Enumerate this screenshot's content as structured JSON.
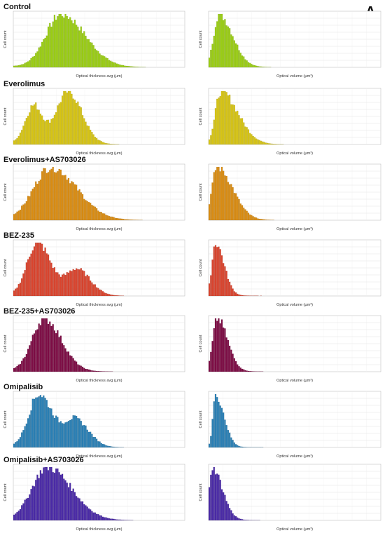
{
  "figure": {
    "panel_letter": "A",
    "axis_label_thickness": "Optical thickness avg (µm)",
    "axis_label_volume": "Optical volume (µm³)",
    "y_label": "Cell count"
  },
  "chart_data": [
    {
      "type": "bar",
      "group": "Control",
      "title": "Control",
      "color": "#9acd14",
      "measure": "thickness",
      "xlabel": "Optical thickness avg (µm)",
      "ylabel": "Cell count",
      "peaks": [
        {
          "center": 0.28,
          "height": 1.0,
          "width_left": 0.09,
          "width_right": 0.14
        }
      ],
      "tail": 0.02
    },
    {
      "type": "bar",
      "group": "Control",
      "title": "",
      "color": "#9acd14",
      "measure": "volume",
      "xlabel": "Optical volume (µm³)",
      "ylabel": "Cell count",
      "peaks": [
        {
          "center": 0.06,
          "height": 1.0,
          "width_left": 0.03,
          "width_right": 0.08
        }
      ],
      "tail": 0.01
    },
    {
      "type": "bar",
      "group": "Everolimus",
      "title": "Everolimus",
      "color": "#d6c414",
      "measure": "thickness",
      "xlabel": "Optical thickness avg (µm)",
      "ylabel": "Cell count",
      "peaks": [
        {
          "center": 0.12,
          "height": 0.72,
          "width_left": 0.05,
          "width_right": 0.05
        },
        {
          "center": 0.32,
          "height": 1.0,
          "width_left": 0.07,
          "width_right": 0.08
        }
      ],
      "tail": 0.02
    },
    {
      "type": "bar",
      "group": "Everolimus",
      "title": "",
      "color": "#d6c414",
      "measure": "volume",
      "xlabel": "Optical volume (µm³)",
      "ylabel": "Cell count",
      "peaks": [
        {
          "center": 0.07,
          "height": 1.0,
          "width_left": 0.03,
          "width_right": 0.1
        }
      ],
      "tail": 0.01
    },
    {
      "type": "bar",
      "group": "Everolimus+AS703026",
      "title": "Everolimus+AS703026",
      "color": "#d98c12",
      "measure": "thickness",
      "xlabel": "Optical thickness avg (µm)",
      "ylabel": "Cell count",
      "peaks": [
        {
          "center": 0.22,
          "height": 1.0,
          "width_left": 0.1,
          "width_right": 0.15
        }
      ],
      "tail": 0.02
    },
    {
      "type": "bar",
      "group": "Everolimus+AS703026",
      "title": "",
      "color": "#d98c12",
      "measure": "volume",
      "xlabel": "Optical volume (µm³)",
      "ylabel": "Cell count",
      "peaks": [
        {
          "center": 0.05,
          "height": 1.0,
          "width_left": 0.03,
          "width_right": 0.09
        }
      ],
      "tail": 0.01
    },
    {
      "type": "bar",
      "group": "BEZ-235",
      "title": "BEZ-235",
      "color": "#d9442e",
      "measure": "thickness",
      "xlabel": "Optical thickness avg (µm)",
      "ylabel": "Cell count",
      "peaks": [
        {
          "center": 0.14,
          "height": 1.0,
          "width_left": 0.06,
          "width_right": 0.08
        },
        {
          "center": 0.37,
          "height": 0.5,
          "width_left": 0.06,
          "width_right": 0.08
        }
      ],
      "tail": 0.02
    },
    {
      "type": "bar",
      "group": "BEZ-235",
      "title": "",
      "color": "#d9442e",
      "measure": "volume",
      "xlabel": "Optical volume (µm³)",
      "ylabel": "Cell count",
      "peaks": [
        {
          "center": 0.04,
          "height": 1.0,
          "width_left": 0.02,
          "width_right": 0.05
        }
      ],
      "tail": 0.01
    },
    {
      "type": "bar",
      "group": "BEZ-235+AS703026",
      "title": "BEZ-235+AS703026",
      "color": "#7d0d45",
      "measure": "thickness",
      "xlabel": "Optical thickness avg (µm)",
      "ylabel": "Cell count",
      "peaks": [
        {
          "center": 0.18,
          "height": 1.0,
          "width_left": 0.07,
          "width_right": 0.1
        }
      ],
      "tail": 0.02
    },
    {
      "type": "bar",
      "group": "BEZ-235+AS703026",
      "title": "",
      "color": "#7d0d45",
      "measure": "volume",
      "xlabel": "Optical volume (µm³)",
      "ylabel": "Cell count",
      "peaks": [
        {
          "center": 0.05,
          "height": 1.0,
          "width_left": 0.025,
          "width_right": 0.06
        }
      ],
      "tail": 0.01
    },
    {
      "type": "bar",
      "group": "Omipalisib",
      "title": "Omipalisib",
      "color": "#2a7fb4",
      "measure": "thickness",
      "xlabel": "Optical thickness avg (µm)",
      "ylabel": "Cell count",
      "peaks": [
        {
          "center": 0.15,
          "height": 1.0,
          "width_left": 0.06,
          "width_right": 0.08
        },
        {
          "center": 0.36,
          "height": 0.52,
          "width_left": 0.06,
          "width_right": 0.08
        }
      ],
      "tail": 0.02
    },
    {
      "type": "bar",
      "group": "Omipalisib",
      "title": "",
      "color": "#2a7fb4",
      "measure": "volume",
      "xlabel": "Optical volume (µm³)",
      "ylabel": "Cell count",
      "peaks": [
        {
          "center": 0.04,
          "height": 1.0,
          "width_left": 0.015,
          "width_right": 0.05
        }
      ],
      "tail": 0.01
    },
    {
      "type": "bar",
      "group": "Omipalisib+AS703026",
      "title": "Omipalisib+AS703026",
      "color": "#4a2aa6",
      "measure": "thickness",
      "xlabel": "Optical thickness avg (µm)",
      "ylabel": "Cell count",
      "peaks": [
        {
          "center": 0.2,
          "height": 1.0,
          "width_left": 0.09,
          "width_right": 0.14
        }
      ],
      "tail": 0.02
    },
    {
      "type": "bar",
      "group": "Omipalisib+AS703026",
      "title": "",
      "color": "#4a2aa6",
      "measure": "volume",
      "xlabel": "Optical volume (µm³)",
      "ylabel": "Cell count",
      "peaks": [
        {
          "center": 0.02,
          "height": 1.0,
          "width_left": 0.015,
          "width_right": 0.06
        }
      ],
      "tail": 0.01
    }
  ]
}
